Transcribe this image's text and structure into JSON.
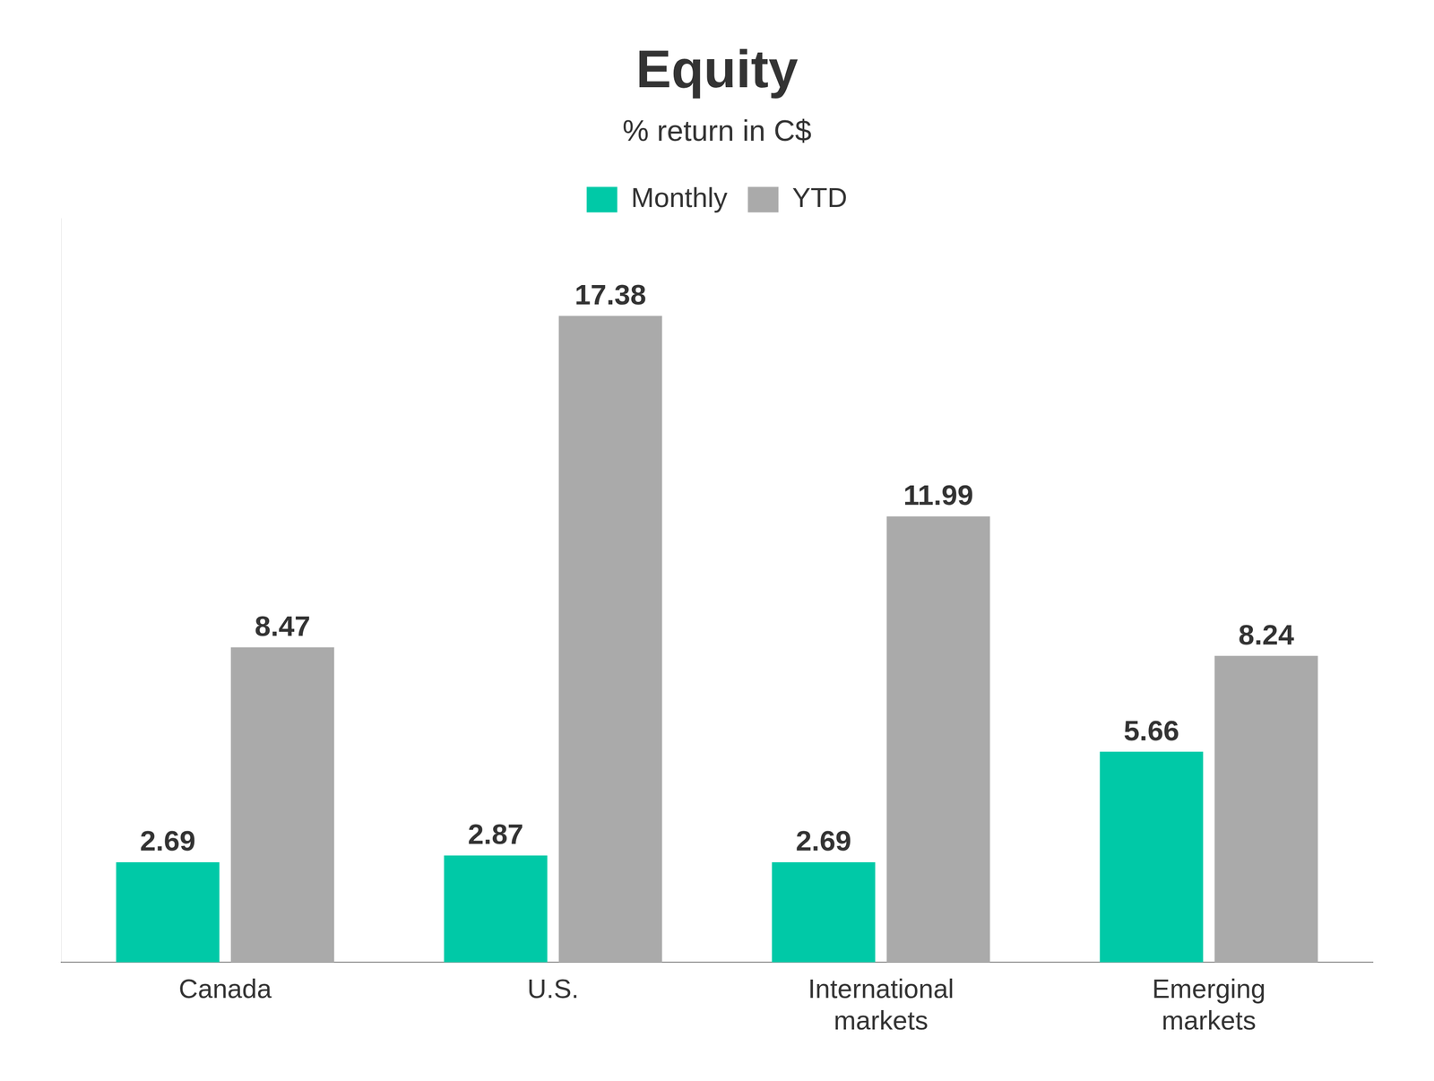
{
  "chart_data": {
    "type": "bar",
    "title": "Equity",
    "subtitle": "% return in C$",
    "categories": [
      "Canada",
      "U.S.",
      "International\nmarkets",
      "Emerging\nmarkets"
    ],
    "series": [
      {
        "name": "Monthly",
        "color": "#00C9A7",
        "values": [
          2.69,
          2.87,
          2.69,
          5.66
        ]
      },
      {
        "name": "YTD",
        "color": "#AAAAAA",
        "values": [
          8.47,
          17.38,
          11.99,
          8.24
        ]
      }
    ],
    "ylim": [
      0,
      20
    ],
    "grid": false,
    "legend": "top",
    "data_labels": true,
    "tick_labels": "x"
  }
}
